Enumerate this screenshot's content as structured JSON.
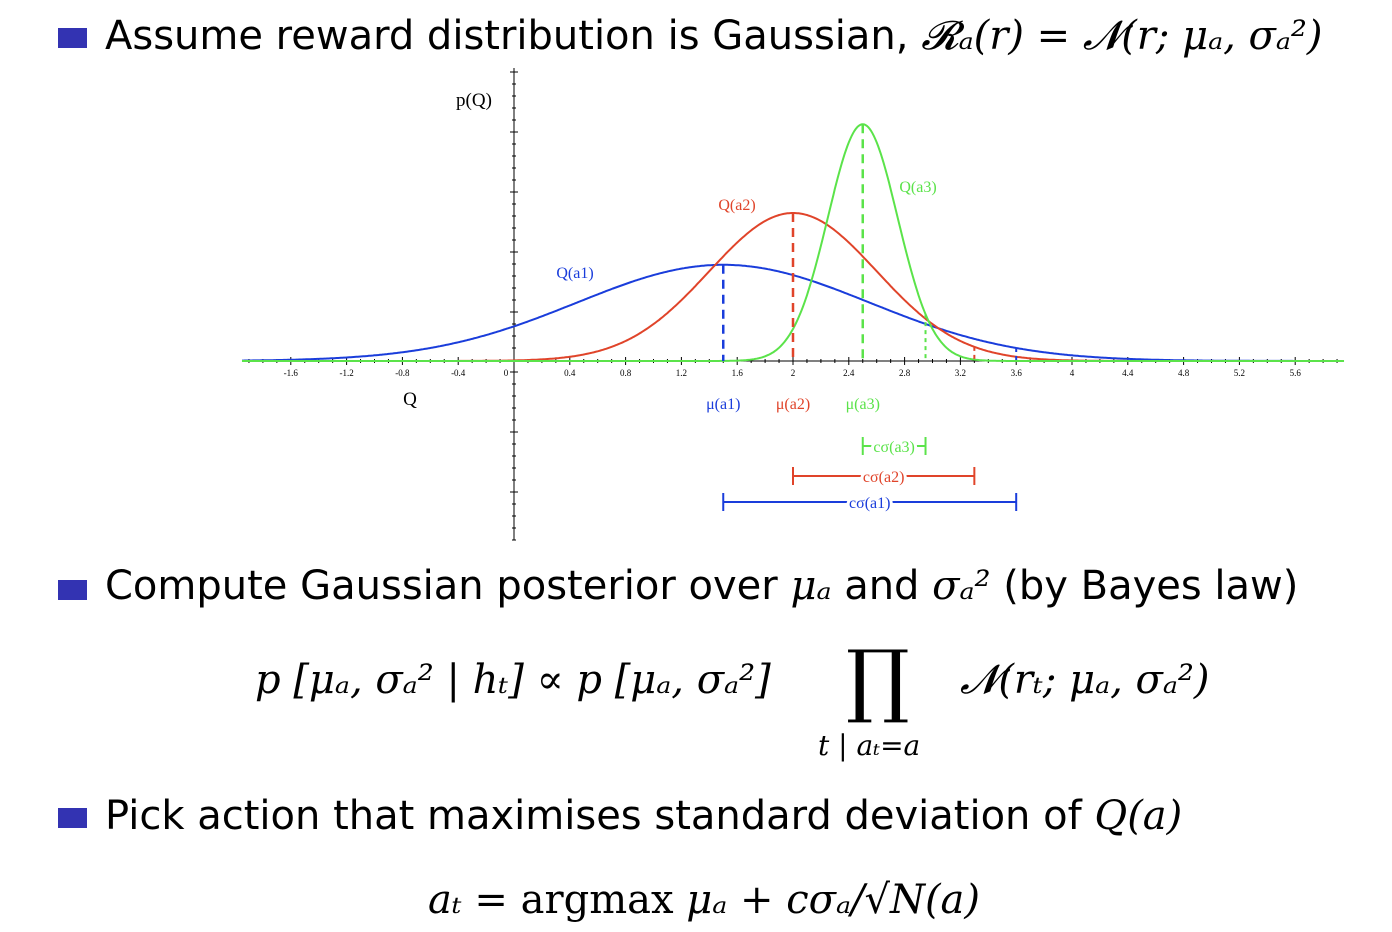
{
  "slide": {
    "bullet1": {
      "text": "Assume reward distribution is Gaussian,",
      "math": "𝓡ₐ(r) = 𝓝(r; μₐ, σₐ²)"
    },
    "bullet2": {
      "text_a": "Compute Gaussian posterior over",
      "mu": "μₐ",
      "and": "and",
      "sigma": "σₐ²",
      "text_b": "(by Bayes law)"
    },
    "posterior_eq": {
      "lhs": "p [μₐ, σₐ² | hₜ] ∝ p [μₐ, σₐ²]",
      "prod": "∏",
      "prod_sub": "t | aₜ=a",
      "rhs": "𝓝(rₜ; μₐ, σₐ²)"
    },
    "bullet3": {
      "text": "Pick action that maximises standard deviation of",
      "math": "Q(a)"
    },
    "action_eq": {
      "lhs": "aₜ = ",
      "argmax": "argmax",
      "rhs": "μₐ + cσₐ/√N(a)"
    }
  },
  "colors": {
    "bullet": "#3333b2",
    "a1": "#1a3ddb",
    "a2": "#e0442a",
    "a3": "#5be34a"
  },
  "chart_data": {
    "type": "line",
    "ylabel": "p(Q)",
    "xlabel": "Q",
    "xlim": [
      -1.95,
      5.95
    ],
    "x_ticks": [
      "-1.6",
      "-1.2",
      "-0.8",
      "-0.4",
      "0",
      "0.4",
      "0.8",
      "1.2",
      "1.6",
      "2",
      "2.4",
      "2.8",
      "3.2",
      "3.6",
      "4",
      "4.4",
      "4.8",
      "5.2",
      "5.6"
    ],
    "series": [
      {
        "name": "Q(a1)",
        "color": "#1a3ddb",
        "mean": 1.5,
        "sd": 1.05,
        "peak": 0.65,
        "mean_label": "μ(a1)",
        "width_label": "cσ(a1)",
        "interval": [
          1.5,
          3.6
        ]
      },
      {
        "name": "Q(a2)",
        "color": "#e0442a",
        "mean": 2.0,
        "sd": 0.6,
        "peak": 1.0,
        "mean_label": "μ(a2)",
        "width_label": "cσ(a2)",
        "interval": [
          2.0,
          3.3
        ]
      },
      {
        "name": "Q(a3)",
        "color": "#5be34a",
        "mean": 2.5,
        "sd": 0.25,
        "peak": 1.6,
        "mean_label": "μ(a3)",
        "width_label": "cσ(a3)",
        "interval": [
          2.5,
          2.95
        ]
      }
    ]
  }
}
